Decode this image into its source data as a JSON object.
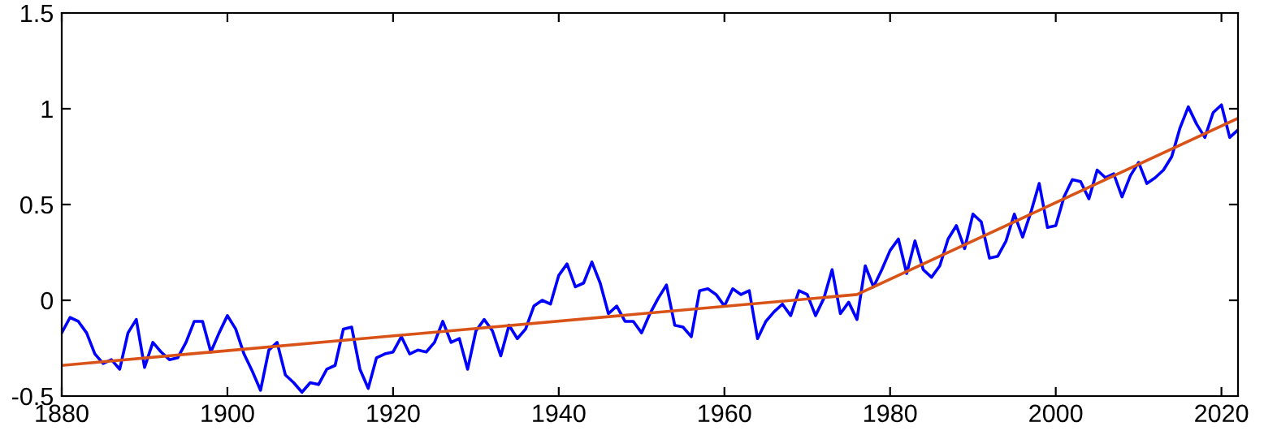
{
  "chart_data": {
    "type": "line",
    "x": [
      1880,
      1881,
      1882,
      1883,
      1884,
      1885,
      1886,
      1887,
      1888,
      1889,
      1890,
      1891,
      1892,
      1893,
      1894,
      1895,
      1896,
      1897,
      1898,
      1899,
      1900,
      1901,
      1902,
      1903,
      1904,
      1905,
      1906,
      1907,
      1908,
      1909,
      1910,
      1911,
      1912,
      1913,
      1914,
      1915,
      1916,
      1917,
      1918,
      1919,
      1920,
      1921,
      1922,
      1923,
      1924,
      1925,
      1926,
      1927,
      1928,
      1929,
      1930,
      1931,
      1932,
      1933,
      1934,
      1935,
      1936,
      1937,
      1938,
      1939,
      1940,
      1941,
      1942,
      1943,
      1944,
      1945,
      1946,
      1947,
      1948,
      1949,
      1950,
      1951,
      1952,
      1953,
      1954,
      1955,
      1956,
      1957,
      1958,
      1959,
      1960,
      1961,
      1962,
      1963,
      1964,
      1965,
      1966,
      1967,
      1968,
      1969,
      1970,
      1971,
      1972,
      1973,
      1974,
      1975,
      1976,
      1977,
      1978,
      1979,
      1980,
      1981,
      1982,
      1983,
      1984,
      1985,
      1986,
      1987,
      1988,
      1989,
      1990,
      1991,
      1992,
      1993,
      1994,
      1995,
      1996,
      1997,
      1998,
      1999,
      2000,
      2001,
      2002,
      2003,
      2004,
      2005,
      2006,
      2007,
      2008,
      2009,
      2010,
      2011,
      2012,
      2013,
      2014,
      2015,
      2016,
      2017,
      2018,
      2019,
      2020,
      2021,
      2022
    ],
    "series": [
      {
        "color": "#0000ff",
        "values": [
          -0.17,
          -0.09,
          -0.11,
          -0.17,
          -0.28,
          -0.33,
          -0.31,
          -0.36,
          -0.17,
          -0.1,
          -0.35,
          -0.22,
          -0.27,
          -0.31,
          -0.3,
          -0.22,
          -0.11,
          -0.11,
          -0.27,
          -0.17,
          -0.08,
          -0.15,
          -0.28,
          -0.37,
          -0.47,
          -0.26,
          -0.22,
          -0.39,
          -0.43,
          -0.48,
          -0.43,
          -0.44,
          -0.36,
          -0.34,
          -0.15,
          -0.14,
          -0.36,
          -0.46,
          -0.3,
          -0.28,
          -0.27,
          -0.19,
          -0.28,
          -0.26,
          -0.27,
          -0.22,
          -0.11,
          -0.22,
          -0.2,
          -0.36,
          -0.16,
          -0.1,
          -0.16,
          -0.29,
          -0.13,
          -0.2,
          -0.15,
          -0.03,
          0.0,
          -0.02,
          0.13,
          0.19,
          0.07,
          0.09,
          0.2,
          0.09,
          -0.07,
          -0.03,
          -0.11,
          -0.11,
          -0.17,
          -0.07,
          0.01,
          0.08,
          -0.13,
          -0.14,
          -0.19,
          0.05,
          0.06,
          0.03,
          -0.03,
          0.06,
          0.03,
          0.05,
          -0.2,
          -0.11,
          -0.06,
          -0.02,
          -0.08,
          0.05,
          0.03,
          -0.08,
          0.01,
          0.16,
          -0.07,
          -0.01,
          -0.1,
          0.18,
          0.07,
          0.16,
          0.26,
          0.32,
          0.14,
          0.31,
          0.16,
          0.12,
          0.18,
          0.32,
          0.39,
          0.27,
          0.45,
          0.41,
          0.22,
          0.23,
          0.31,
          0.45,
          0.33,
          0.46,
          0.61,
          0.38,
          0.39,
          0.54,
          0.63,
          0.62,
          0.53,
          0.68,
          0.64,
          0.66,
          0.54,
          0.65,
          0.72,
          0.61,
          0.64,
          0.68,
          0.75,
          0.9,
          1.01,
          0.92,
          0.85,
          0.98,
          1.02,
          0.85,
          0.89
        ]
      },
      {
        "color": "#d95319",
        "x": [
          1880,
          1976,
          2022
        ],
        "values": [
          -0.34,
          0.03,
          0.95
        ]
      }
    ],
    "xlim": [
      1880,
      2022
    ],
    "ylim": [
      -0.5,
      1.5
    ],
    "xticks": [
      1880,
      1900,
      1920,
      1940,
      1960,
      1980,
      2000,
      2020
    ],
    "yticks": [
      {
        "value": -0.5,
        "label": "-0.5"
      },
      0,
      0.5,
      1,
      1.5
    ],
    "grid": false
  }
}
